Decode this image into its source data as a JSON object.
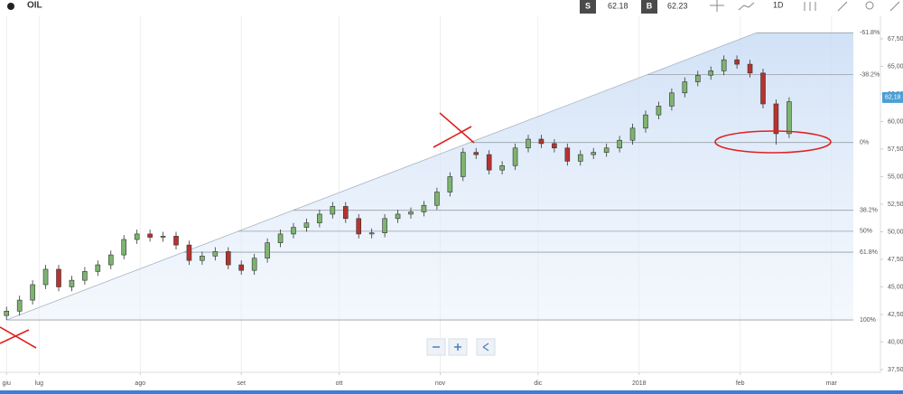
{
  "header": {
    "symbol": "OIL",
    "sell_label": "S",
    "sell_price": "62.18",
    "buy_label": "B",
    "buy_price": "62.23",
    "timeframe": "1D"
  },
  "chart_data": {
    "type": "candlestick",
    "up_color": "#7db46f",
    "down_color": "#b8322f",
    "xlim": [
      -12,
      258
    ],
    "ylim": [
      37.25,
      69.55
    ],
    "xticks": [
      {
        "value": -10,
        "label": "giu"
      },
      {
        "value": 0,
        "label": "lug"
      },
      {
        "value": 31,
        "label": "ago"
      },
      {
        "value": 62,
        "label": "set"
      },
      {
        "value": 92,
        "label": "ott"
      },
      {
        "value": 123,
        "label": "nov"
      },
      {
        "value": 153,
        "label": "dic"
      },
      {
        "value": 184,
        "label": "2018"
      },
      {
        "value": 215,
        "label": "feb"
      },
      {
        "value": 243,
        "label": "mar"
      }
    ],
    "yticks": [
      {
        "value": 37.5,
        "label": "37,50"
      },
      {
        "value": 40,
        "label": "40,00"
      },
      {
        "value": 42.5,
        "label": "42,50"
      },
      {
        "value": 45,
        "label": "45,00"
      },
      {
        "value": 47.5,
        "label": "47,50"
      },
      {
        "value": 50,
        "label": "50,00"
      },
      {
        "value": 52.5,
        "label": "52,50"
      },
      {
        "value": 55,
        "label": "55,00"
      },
      {
        "value": 57.5,
        "label": "57,50"
      },
      {
        "value": 60,
        "label": "60,00"
      },
      {
        "value": 62.5,
        "label": "62,50"
      },
      {
        "value": 65,
        "label": "65,00"
      },
      {
        "value": 67.5,
        "label": "67,50"
      }
    ],
    "last_price": {
      "value": 62.18,
      "label": "62,18"
    },
    "trendline": {
      "x": [
        -10,
        220
      ],
      "y": [
        42.0,
        68.05
      ]
    },
    "fib_levels": [
      {
        "price": 68.05,
        "label": "-61.8%"
      },
      {
        "price": 64.25,
        "label": "-38.2%"
      },
      {
        "price": 58.1,
        "label": "0%"
      },
      {
        "price": 51.95,
        "label": "38.2%"
      },
      {
        "price": 50.05,
        "label": "50%"
      },
      {
        "price": 48.15,
        "label": "61.8%"
      },
      {
        "price": 42.0,
        "label": "100%"
      }
    ],
    "candles": {
      "x": [
        -10,
        -6,
        -2,
        2,
        6,
        10,
        14,
        18,
        22,
        26,
        30,
        34,
        38,
        42,
        46,
        50,
        54,
        58,
        62,
        66,
        70,
        74,
        78,
        82,
        86,
        90,
        94,
        98,
        102,
        106,
        110,
        114,
        118,
        122,
        126,
        130,
        134,
        138,
        142,
        146,
        150,
        154,
        158,
        162,
        166,
        170,
        174,
        178,
        182,
        186,
        190,
        194,
        198,
        202,
        206,
        210,
        214,
        218,
        222,
        226,
        230
      ],
      "open": [
        42.4,
        42.8,
        43.8,
        45.2,
        46.6,
        45.0,
        45.6,
        46.4,
        47.0,
        47.9,
        49.3,
        49.8,
        49.5,
        49.6,
        48.8,
        47.4,
        47.8,
        48.2,
        47.0,
        46.5,
        47.6,
        49.0,
        49.8,
        50.4,
        50.8,
        51.6,
        52.3,
        51.2,
        49.8,
        49.9,
        51.2,
        51.6,
        51.8,
        52.4,
        53.6,
        55.0,
        57.2,
        57.0,
        55.6,
        56.0,
        57.6,
        58.4,
        58.0,
        57.6,
        56.4,
        57.0,
        57.2,
        57.6,
        58.3,
        59.4,
        60.6,
        61.4,
        62.6,
        63.6,
        64.2,
        64.6,
        65.6,
        65.2,
        64.4,
        61.6,
        58.9
      ],
      "high": [
        43.2,
        44.2,
        45.6,
        47.0,
        47.0,
        46.0,
        46.8,
        47.4,
        48.3,
        49.7,
        50.2,
        50.2,
        50.0,
        50.0,
        49.2,
        48.2,
        48.6,
        48.6,
        47.4,
        48.0,
        49.4,
        50.2,
        50.8,
        51.2,
        52.0,
        52.7,
        52.7,
        51.6,
        50.3,
        51.6,
        52.0,
        52.2,
        52.8,
        54.0,
        55.4,
        57.6,
        57.6,
        57.4,
        56.4,
        58.0,
        58.8,
        58.8,
        58.4,
        58.0,
        57.4,
        57.6,
        58.0,
        58.7,
        59.8,
        61.0,
        61.8,
        63.0,
        64.0,
        64.6,
        65.0,
        66.0,
        66.0,
        65.6,
        64.8,
        62.0,
        62.2
      ],
      "low": [
        42.0,
        42.4,
        43.4,
        44.8,
        44.6,
        44.6,
        45.2,
        46.0,
        46.6,
        47.5,
        48.9,
        49.1,
        49.1,
        48.4,
        47.0,
        47.0,
        47.4,
        46.6,
        46.1,
        46.1,
        47.2,
        48.6,
        49.4,
        50.0,
        50.4,
        51.2,
        50.8,
        49.4,
        49.4,
        49.5,
        50.8,
        51.2,
        51.4,
        52.0,
        53.2,
        54.6,
        56.6,
        55.2,
        55.2,
        55.6,
        57.2,
        57.6,
        57.2,
        56.0,
        56.0,
        56.6,
        56.8,
        57.2,
        57.9,
        59.0,
        60.2,
        61.0,
        62.2,
        63.2,
        63.8,
        64.2,
        64.8,
        64.0,
        61.2,
        57.9,
        58.5
      ],
      "close": [
        42.8,
        43.8,
        45.2,
        46.6,
        45.0,
        45.6,
        46.4,
        47.0,
        47.9,
        49.3,
        49.8,
        49.5,
        49.6,
        48.8,
        47.4,
        47.8,
        48.2,
        47.0,
        46.5,
        47.6,
        49.0,
        49.8,
        50.4,
        50.8,
        51.6,
        52.3,
        51.2,
        49.8,
        49.9,
        51.2,
        51.6,
        51.8,
        52.4,
        53.6,
        55.0,
        57.2,
        57.0,
        55.6,
        56.0,
        57.6,
        58.4,
        58.0,
        57.6,
        56.4,
        57.0,
        57.2,
        57.6,
        58.3,
        59.4,
        60.6,
        61.4,
        62.6,
        63.6,
        64.2,
        64.6,
        65.6,
        65.2,
        64.4,
        61.6,
        58.9,
        61.8
      ]
    }
  }
}
